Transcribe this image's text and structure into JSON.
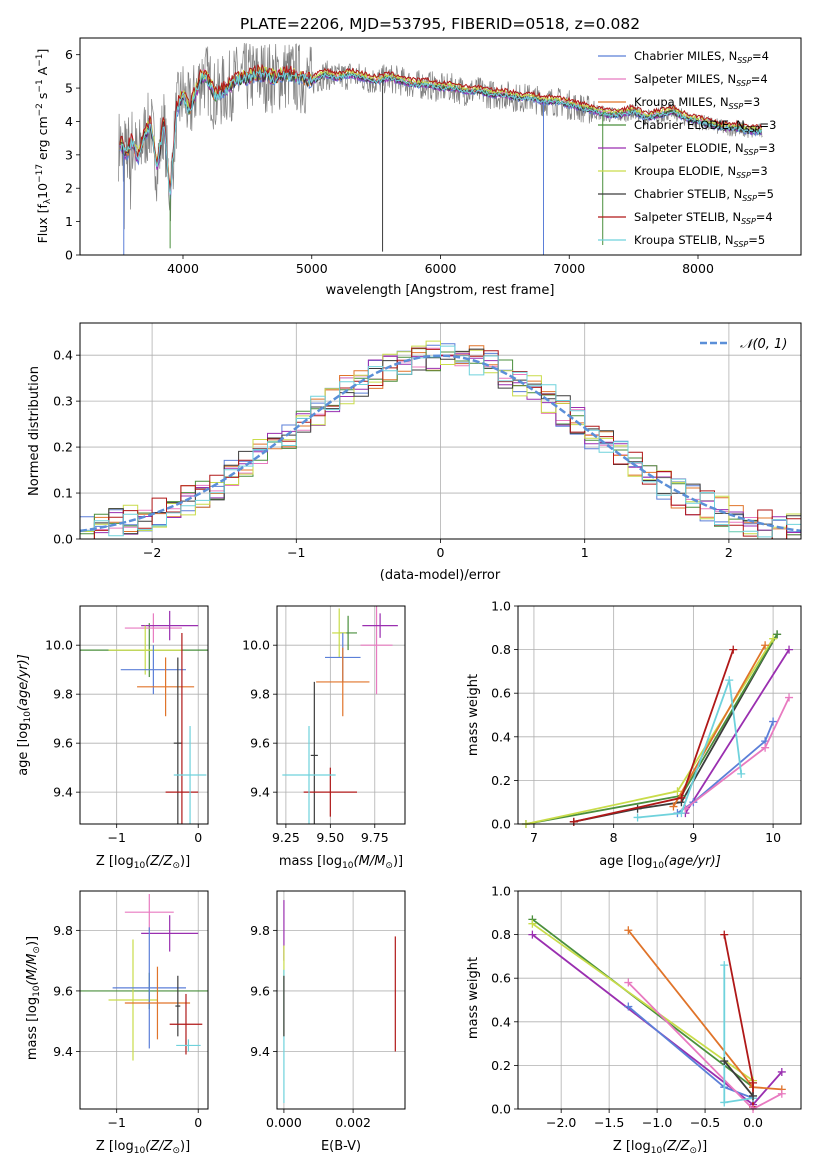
{
  "figure_title": "PLATE=2206, MJD=53795, FIBERID=0518, z=0.082",
  "legend_entries": [
    {
      "prefix": "Chabrier MILES, N",
      "sub": "SSP",
      "suffix": "=4",
      "color": "#5b7fd8"
    },
    {
      "prefix": "Salpeter MILES, N",
      "sub": "SSP",
      "suffix": "=4",
      "color": "#e87ac0"
    },
    {
      "prefix": "Kroupa MILES, N",
      "sub": "SSP",
      "suffix": "=3",
      "color": "#e0742a"
    },
    {
      "prefix": "Chabrier ELODIE, N",
      "sub": "SSP",
      "suffix": "=3",
      "color": "#4a8f3c"
    },
    {
      "prefix": "Salpeter ELODIE, N",
      "sub": "SSP",
      "suffix": "=3",
      "color": "#9a2fb0"
    },
    {
      "prefix": "Kroupa ELODIE, N",
      "sub": "SSP",
      "suffix": "=3",
      "color": "#c9dc4a"
    },
    {
      "prefix": "Chabrier STELIB, N",
      "sub": "SSP",
      "suffix": "=5",
      "color": "#3c3c3c"
    },
    {
      "prefix": "Salpeter STELIB, N",
      "sub": "SSP",
      "suffix": "=4",
      "color": "#b01818"
    },
    {
      "prefix": "Kroupa STELIB, N",
      "sub": "SSP",
      "suffix": "=5",
      "color": "#6fd2dc"
    }
  ],
  "colors": {
    "data_spectrum": "#7f7f7f",
    "normal_curve": "#5b8fd8",
    "grid": "#b0b0b0"
  },
  "chart_data": [
    {
      "id": "spectrum",
      "type": "line",
      "xlabel": "wavelength [Angstrom, rest frame]",
      "ylabel_main": "Flux [f",
      "ylabel_sub": "λ",
      "ylabel_rest": "10",
      "ylabel_exp1": "−17",
      "ylabel_mid": " erg cm",
      "ylabel_exp2": "−2",
      "ylabel_mid2": " s",
      "ylabel_exp3": "−1",
      "ylabel_end": " A",
      "ylabel_exp4": "−1",
      "ylabel_close": "]",
      "xlim": [
        3200,
        8800
      ],
      "ylim": [
        0,
        6.5
      ],
      "xticks": [
        4000,
        5000,
        6000,
        7000,
        8000
      ],
      "yticks": [
        0,
        1,
        2,
        3,
        4,
        5,
        6
      ],
      "grid": false,
      "model_series": [
        {
          "name": "Kroupa STELIB",
          "color": "#6fd2dc",
          "x": [
            3520,
            3560,
            3600,
            3650,
            3700,
            3750,
            3800,
            3850,
            3900,
            3950,
            4000,
            4050,
            4100,
            4150,
            4200,
            4250,
            4300,
            4350,
            4400,
            4500,
            4600,
            4700,
            4800,
            4900,
            5000,
            5100,
            5200,
            5300,
            5400,
            5500,
            5600,
            5700,
            5800,
            5900,
            6000,
            6100,
            6200,
            6300,
            6400,
            6500,
            6600,
            6700,
            6800,
            6900,
            7000,
            7100,
            7200,
            7300,
            7400,
            7500,
            7600,
            7700,
            7800,
            7900,
            8000,
            8100,
            8200,
            8300,
            8400,
            8500
          ],
          "y": [
            3.3,
            3.0,
            3.4,
            2.9,
            3.6,
            3.9,
            2.6,
            4.0,
            1.8,
            4.3,
            4.8,
            4.3,
            4.9,
            5.4,
            5.2,
            4.7,
            4.9,
            5.0,
            5.2,
            5.3,
            5.4,
            5.3,
            5.4,
            5.3,
            5.2,
            5.4,
            5.3,
            5.4,
            5.3,
            5.2,
            5.3,
            5.2,
            5.1,
            5.1,
            5.0,
            5.0,
            4.9,
            4.9,
            4.8,
            4.8,
            4.7,
            4.7,
            4.6,
            4.6,
            4.5,
            4.4,
            4.3,
            4.2,
            4.2,
            4.3,
            4.1,
            4.2,
            4.3,
            4.1,
            4.0,
            3.9,
            3.8,
            3.8,
            3.7,
            3.7
          ]
        }
      ],
      "model_offsets": [
        -0.05,
        0.05,
        0.0,
        0.03,
        -0.03,
        0.1,
        -0.02,
        0.15,
        0.0
      ],
      "data_spectrum_note": "observed spectrum drawn as dense noisy grey line around the models"
    },
    {
      "id": "residuals",
      "type": "area",
      "xlabel": "(data-model)/error",
      "ylabel": "Normed distribution",
      "xlim": [
        -2.5,
        2.5
      ],
      "ylim": [
        0,
        0.47
      ],
      "xticks": [
        -2,
        -1,
        0,
        1,
        2
      ],
      "yticks": [
        0.0,
        0.1,
        0.2,
        0.3,
        0.4
      ],
      "grid": true,
      "legend_label_pre": "𝒩(0, 1)",
      "bin_width": 0.1
    },
    {
      "id": "age_vs_Z",
      "type": "scatter",
      "xlabel_main": "Z [log",
      "xlabel_sub": "10",
      "xlabel_rest": "(Z/Z",
      "xlabel_sun": "⊙",
      "xlabel_end": ")]",
      "ylabel_main": "age  [log",
      "ylabel_sub": "10",
      "ylabel_rest": "(age/yr)]",
      "xlim": [
        -1.45,
        0.12
      ],
      "ylim": [
        9.27,
        10.16
      ],
      "xticks": [
        -1,
        0
      ],
      "yticks": [
        9.4,
        9.6,
        9.8,
        10.0
      ],
      "grid": true,
      "errorbars": [
        {
          "x": -0.6,
          "y": 9.98,
          "xerr": 0.85,
          "yerr": 0.11,
          "color": "#4a8f3c"
        },
        {
          "x": -0.55,
          "y": 10.07,
          "xerr": 0.35,
          "yerr": 0.06,
          "color": "#e87ac0"
        },
        {
          "x": -0.35,
          "y": 10.08,
          "xerr": 0.35,
          "yerr": 0.06,
          "color": "#9a2fb0"
        },
        {
          "x": -0.65,
          "y": 9.98,
          "xerr": 0.45,
          "yerr": 0.1,
          "color": "#c9dc4a"
        },
        {
          "x": -0.55,
          "y": 9.9,
          "xerr": 0.4,
          "yerr": 0.1,
          "color": "#5b7fd8"
        },
        {
          "x": -0.4,
          "y": 9.83,
          "xerr": 0.35,
          "yerr": 0.12,
          "color": "#e0742a"
        },
        {
          "x": -0.25,
          "y": 9.6,
          "xerr": 0.05,
          "yerr": 0.35,
          "color": "#3c3c3c"
        },
        {
          "x": -0.2,
          "y": 9.4,
          "xerr": 0.2,
          "yerr": 0.65,
          "color": "#b01818"
        },
        {
          "x": -0.1,
          "y": 9.47,
          "xerr": 0.2,
          "yerr": 0.2,
          "color": "#6fd2dc"
        }
      ]
    },
    {
      "id": "age_vs_mass",
      "type": "scatter",
      "xlabel_main": "mass [log",
      "xlabel_sub": "10",
      "xlabel_rest": "(M/M",
      "xlabel_sun": "⊙",
      "xlabel_end": ")]",
      "xlim": [
        9.2,
        9.92
      ],
      "ylim": [
        9.27,
        10.16
      ],
      "xticks": [
        9.25,
        9.5,
        9.75
      ],
      "yticks": [
        9.4,
        9.6,
        9.8,
        10.0
      ],
      "grid": true,
      "errorbars": [
        {
          "x": 9.6,
          "y": 10.05,
          "xerr": 0.05,
          "yerr": 0.07,
          "color": "#4a8f3c"
        },
        {
          "x": 9.76,
          "y": 10.0,
          "xerr": 0.09,
          "yerr": 0.2,
          "color": "#e87ac0"
        },
        {
          "x": 9.78,
          "y": 10.08,
          "xerr": 0.1,
          "yerr": 0.05,
          "color": "#9a2fb0"
        },
        {
          "x": 9.55,
          "y": 10.05,
          "xerr": 0.04,
          "yerr": 0.1,
          "color": "#c9dc4a"
        },
        {
          "x": 9.57,
          "y": 9.95,
          "xerr": 0.1,
          "yerr": 0.1,
          "color": "#5b7fd8"
        },
        {
          "x": 9.57,
          "y": 9.85,
          "xerr": 0.15,
          "yerr": 0.14,
          "color": "#e0742a"
        },
        {
          "x": 9.41,
          "y": 9.55,
          "xerr": 0.02,
          "yerr": 0.3,
          "color": "#3c3c3c"
        },
        {
          "x": 9.5,
          "y": 9.4,
          "xerr": 0.15,
          "yerr": 0.1,
          "color": "#b01818"
        },
        {
          "x": 9.38,
          "y": 9.47,
          "xerr": 0.15,
          "yerr": 0.2,
          "color": "#6fd2dc"
        }
      ]
    },
    {
      "id": "weight_vs_age",
      "type": "line",
      "xlabel_main": "age  [log",
      "xlabel_sub": "10",
      "xlabel_rest": "(age/yr)]",
      "ylabel": "mass weight",
      "xlim": [
        6.8,
        10.35
      ],
      "ylim": [
        0,
        1
      ],
      "xticks": [
        7,
        8,
        9,
        10
      ],
      "yticks": [
        0.0,
        0.2,
        0.4,
        0.6,
        0.8,
        1.0
      ],
      "grid": true,
      "series": [
        {
          "color": "#3c3c3c",
          "x": [
            7.5,
            8.3,
            8.85,
            10.05
          ],
          "y": [
            0.01,
            0.07,
            0.1,
            0.87
          ]
        },
        {
          "color": "#4a8f3c",
          "x": [
            6.9,
            8.85,
            10.05
          ],
          "y": [
            0.0,
            0.13,
            0.87
          ]
        },
        {
          "color": "#c9dc4a",
          "x": [
            6.9,
            8.8,
            10.0
          ],
          "y": [
            0.0,
            0.15,
            0.85
          ]
        },
        {
          "color": "#e0742a",
          "x": [
            8.75,
            9.9
          ],
          "y": [
            0.08,
            0.82
          ]
        },
        {
          "color": "#9a2fb0",
          "x": [
            8.9,
            10.2
          ],
          "y": [
            0.05,
            0.8
          ]
        },
        {
          "color": "#b01818",
          "x": [
            7.5,
            8.85,
            9.5
          ],
          "y": [
            0.01,
            0.12,
            0.8
          ]
        },
        {
          "color": "#5b7fd8",
          "x": [
            8.8,
            9.0,
            9.9,
            10.0
          ],
          "y": [
            0.05,
            0.1,
            0.38,
            0.47
          ]
        },
        {
          "color": "#e87ac0",
          "x": [
            8.9,
            9.9,
            10.2
          ],
          "y": [
            0.07,
            0.35,
            0.58
          ]
        },
        {
          "color": "#6fd2dc",
          "x": [
            8.3,
            8.85,
            9.45,
            9.6
          ],
          "y": [
            0.03,
            0.05,
            0.66,
            0.23
          ]
        }
      ]
    },
    {
      "id": "mass_vs_Z",
      "type": "scatter",
      "xlabel_main": "Z [log",
      "xlabel_sub": "10",
      "xlabel_rest": "(Z/Z",
      "xlabel_sun": "⊙",
      "xlabel_end": ")]",
      "ylabel_main": "mass [log",
      "ylabel_sub": "10",
      "ylabel_rest": "(M/M",
      "ylabel_sun": "⊙",
      "ylabel_end": ")]",
      "xlim": [
        -1.45,
        0.12
      ],
      "ylim": [
        9.21,
        9.93
      ],
      "xticks": [
        -1,
        0
      ],
      "yticks": [
        9.4,
        9.6,
        9.8
      ],
      "grid": true,
      "errorbars": [
        {
          "x": -0.6,
          "y": 9.6,
          "xerr": 0.85,
          "yerr": 0.06,
          "color": "#4a8f3c"
        },
        {
          "x": -0.6,
          "y": 9.86,
          "xerr": 0.3,
          "yerr": 0.06,
          "color": "#e87ac0"
        },
        {
          "x": -0.35,
          "y": 9.79,
          "xerr": 0.35,
          "yerr": 0.06,
          "color": "#9a2fb0"
        },
        {
          "x": -0.8,
          "y": 9.57,
          "xerr": 0.3,
          "yerr": 0.2,
          "color": "#c9dc4a"
        },
        {
          "x": -0.6,
          "y": 9.61,
          "xerr": 0.45,
          "yerr": 0.2,
          "color": "#5b7fd8"
        },
        {
          "x": -0.5,
          "y": 9.56,
          "xerr": 0.4,
          "yerr": 0.12,
          "color": "#e0742a"
        },
        {
          "x": -0.25,
          "y": 9.55,
          "xerr": 0.03,
          "yerr": 0.1,
          "color": "#3c3c3c"
        },
        {
          "x": -0.15,
          "y": 9.49,
          "xerr": 0.2,
          "yerr": 0.1,
          "color": "#b01818"
        },
        {
          "x": -0.12,
          "y": 9.42,
          "xerr": 0.15,
          "yerr": 0.02,
          "color": "#6fd2dc"
        }
      ]
    },
    {
      "id": "mass_vs_ebv",
      "type": "scatter",
      "xlabel": "E(B-V)",
      "xlim": [
        -0.0002,
        0.0035
      ],
      "ylim": [
        9.21,
        9.93
      ],
      "xticks": [
        0.0,
        0.002
      ],
      "xtick_labels": [
        "0.000",
        "0.002"
      ],
      "yticks": [
        9.4,
        9.6,
        9.8
      ],
      "grid": true,
      "errorbars": [
        {
          "x": 0.0,
          "y": 9.8,
          "yerr": 0.1,
          "color": "#9a2fb0"
        },
        {
          "x": 0.0,
          "y": 9.6,
          "yerr": 0.15,
          "color": "#c9dc4a"
        },
        {
          "x": 0.0,
          "y": 9.45,
          "yerr": 0.22,
          "color": "#6fd2dc"
        },
        {
          "x": 0.0,
          "y": 9.55,
          "yerr": 0.1,
          "color": "#3c3c3c"
        },
        {
          "x": 0.00322,
          "y": 9.59,
          "yerr": 0.19,
          "color": "#b01818"
        }
      ]
    },
    {
      "id": "weight_vs_Z",
      "type": "line",
      "xlabel_main": "Z [log",
      "xlabel_sub": "10",
      "xlabel_rest": "(Z/Z",
      "xlabel_sun": "⊙",
      "xlabel_end": ")]",
      "ylabel": "mass weight",
      "xlim": [
        -2.45,
        0.5
      ],
      "ylim": [
        0,
        1
      ],
      "xticks": [
        -2.0,
        -1.5,
        -1.0,
        -0.5,
        0.0
      ],
      "xtick_labels": [
        "−2.0",
        "−1.5",
        "−1.0",
        "−0.5",
        "0.0"
      ],
      "yticks": [
        0.0,
        0.2,
        0.4,
        0.6,
        0.8,
        1.0
      ],
      "grid": true,
      "series": [
        {
          "color": "#4a8f3c",
          "x": [
            -2.3,
            0.0
          ],
          "y": [
            0.87,
            0.1
          ]
        },
        {
          "color": "#c9dc4a",
          "x": [
            -2.3,
            0.0
          ],
          "y": [
            0.85,
            0.13
          ]
        },
        {
          "color": "#9a2fb0",
          "x": [
            -2.3,
            0.0,
            0.3
          ],
          "y": [
            0.8,
            0.02,
            0.17
          ]
        },
        {
          "color": "#e0742a",
          "x": [
            -1.3,
            0.0,
            0.3
          ],
          "y": [
            0.82,
            0.1,
            0.09
          ]
        },
        {
          "color": "#b01818",
          "x": [
            -0.3,
            0.0,
            0.0
          ],
          "y": [
            0.8,
            0.12,
            0.01
          ]
        },
        {
          "color": "#5b7fd8",
          "x": [
            -1.3,
            -0.3,
            0.0
          ],
          "y": [
            0.47,
            0.1,
            0.05
          ]
        },
        {
          "color": "#e87ac0",
          "x": [
            -1.3,
            0.0,
            0.3
          ],
          "y": [
            0.58,
            0.0,
            0.07
          ]
        },
        {
          "color": "#6fd2dc",
          "x": [
            -0.3,
            -0.3,
            0.0
          ],
          "y": [
            0.66,
            0.03,
            0.05
          ]
        },
        {
          "color": "#3c3c3c",
          "x": [
            -0.3,
            0.0
          ],
          "y": [
            0.22,
            0.06
          ]
        }
      ]
    }
  ]
}
